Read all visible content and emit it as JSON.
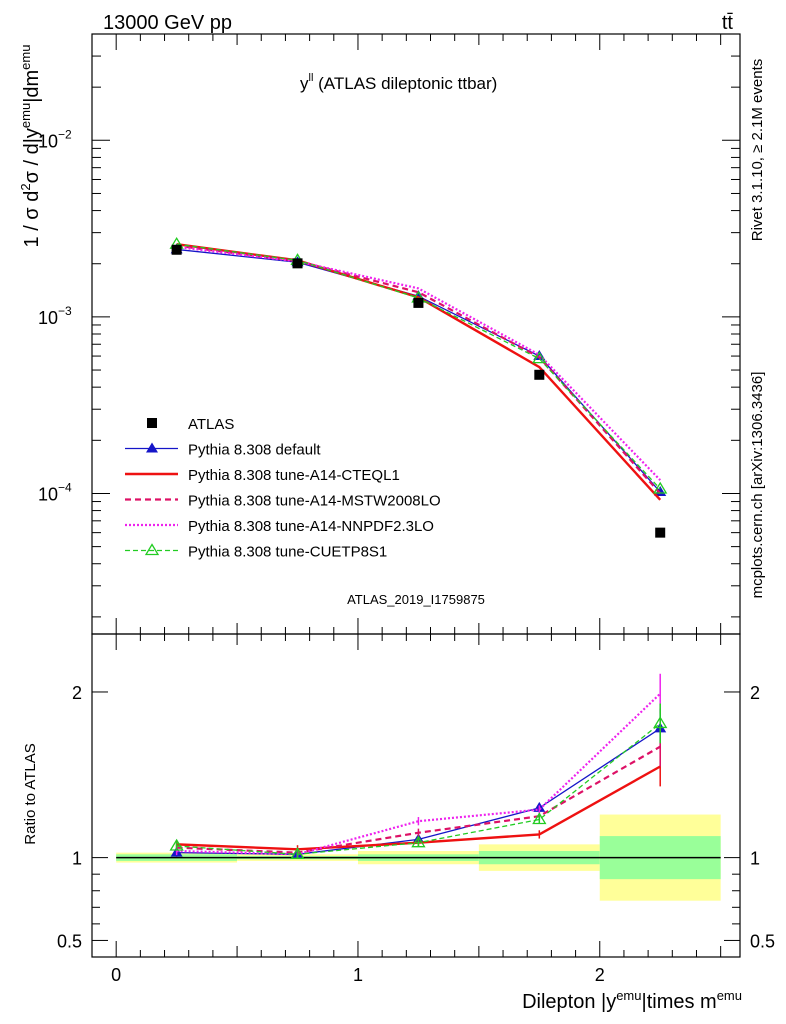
{
  "header": {
    "left": "13000 GeV pp",
    "right": "tt̄"
  },
  "side_labels": {
    "rivet": "Rivet 3.1.10, ≥ 2.1M events",
    "mcplots": "mcplots.cern.ch [arXiv:1306.3436]"
  },
  "plot_title": {
    "main": "y",
    "sup": "ll",
    "rest": " (ATLAS dileptonic ttbar)"
  },
  "watermark": "ATLAS_2019_I1759875",
  "ylabel": {
    "t1": "1 / σ  d",
    "s1": "2",
    "t2": "σ / d|y",
    "s2": "emu",
    "t3": "|dm",
    "s3": "emu"
  },
  "xlabel": {
    "t1": "Dilepton |y",
    "s1": "emu",
    "t2": "|times m",
    "s2": "emu"
  },
  "ratio_ylabel": "Ratio to ATLAS",
  "colors": {
    "atlas": "#000000",
    "default": "#1515c8",
    "cteql1": "#ee1111",
    "mstw": "#dd1166",
    "nnpdf": "#ee22ee",
    "cuetp8s1": "#22cc22",
    "band_inner": "#99ff99",
    "band_outer": "#ffff99"
  },
  "chart_data": {
    "type": "line",
    "x": [
      0.25,
      0.75,
      1.25,
      1.75,
      2.25
    ],
    "x_edges": [
      0,
      0.5,
      1.0,
      1.5,
      2.0,
      2.5
    ],
    "xlim": [
      -0.1,
      2.58
    ],
    "x_ticks": [
      "0",
      "1",
      "2"
    ],
    "ylim": [
      1.6e-05,
      0.04
    ],
    "y_log": true,
    "y_ticks": [
      {
        "base": "10",
        "exp": "−2"
      },
      {
        "base": "10",
        "exp": "−3"
      },
      {
        "base": "10",
        "exp": "−4"
      }
    ],
    "ratio_ylim": [
      0.4,
      2.35
    ],
    "ratio_ticks": [
      "2",
      "1",
      "0.5"
    ],
    "legend_position": "center-left",
    "data": {
      "name": "ATLAS",
      "values": [
        0.0024,
        0.00201,
        0.0012,
        0.00047,
        6e-05
      ]
    },
    "series": [
      {
        "name": "Pythia 8.308 default",
        "values": [
          0.00241,
          0.00204,
          0.00131,
          0.0006,
          0.000102
        ],
        "ratio": [
          1.03,
          1.02,
          1.11,
          1.3,
          1.78
        ]
      },
      {
        "name": "Pythia 8.308 tune-A14-CTEQL1",
        "values": [
          0.00258,
          0.00209,
          0.00129,
          0.00052,
          9.2e-05
        ],
        "ratio": [
          1.08,
          1.05,
          1.09,
          1.14,
          1.55
        ]
      },
      {
        "name": "Pythia 8.308 tune-A14-MSTW2008LO",
        "values": [
          0.00253,
          0.00207,
          0.00138,
          0.00059,
          0.0001
        ],
        "ratio": [
          1.06,
          1.03,
          1.15,
          1.25,
          1.67
        ]
      },
      {
        "name": "Pythia 8.308 tune-A14-NNPDF2.3LO",
        "values": [
          0.00249,
          0.00206,
          0.00145,
          0.00061,
          0.000119
        ],
        "ratio": [
          1.04,
          1.02,
          1.22,
          1.29,
          1.99
        ]
      },
      {
        "name": "Pythia 8.308 tune-CUETP8S1",
        "values": [
          0.00258,
          0.00209,
          0.00128,
          0.00058,
          0.000106
        ],
        "ratio": [
          1.07,
          1.02,
          1.09,
          1.23,
          1.81
        ]
      }
    ],
    "uncertainty_band": {
      "inner": [
        0.02,
        0.01,
        0.02,
        0.04,
        0.13
      ],
      "outer": [
        0.03,
        0.02,
        0.04,
        0.08,
        0.26
      ]
    }
  }
}
